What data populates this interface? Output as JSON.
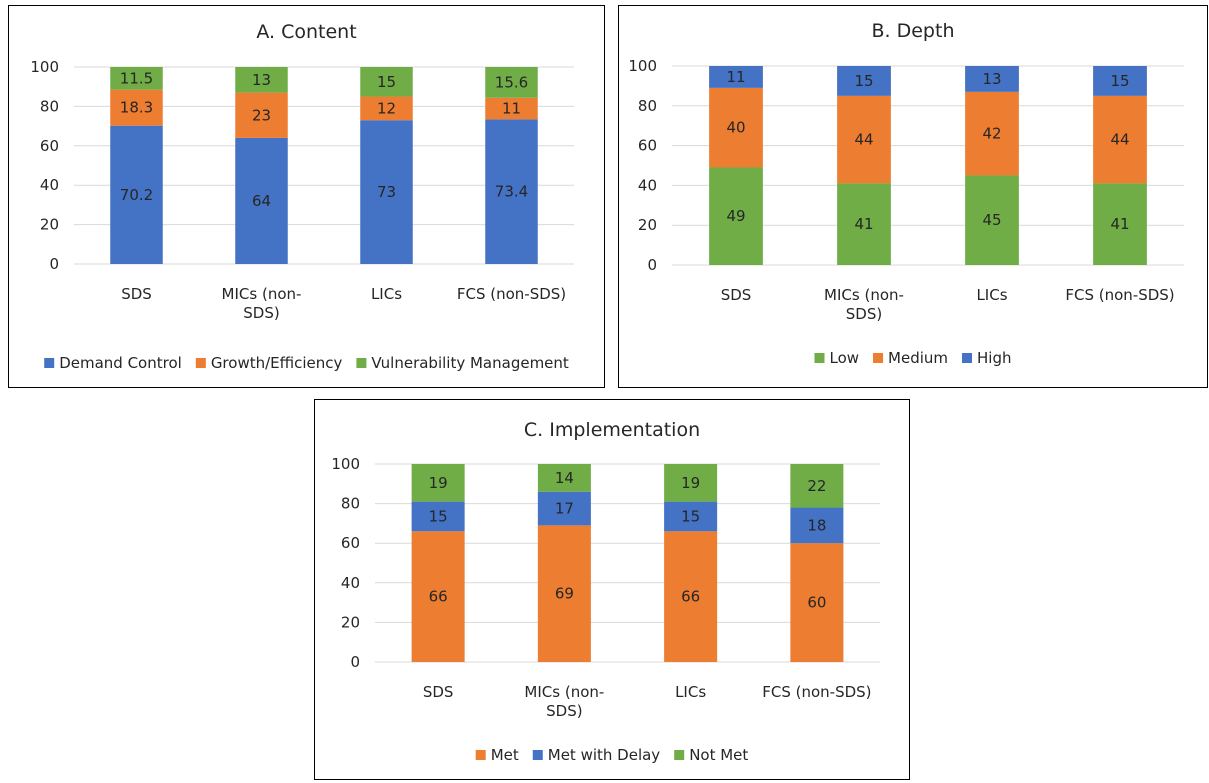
{
  "chart_data": [
    {
      "type": "bar",
      "stacked": true,
      "title": "A. Content",
      "categories": [
        [
          "SDS"
        ],
        [
          "MICs (non-",
          "SDS)"
        ],
        [
          "LICs"
        ],
        [
          "FCS (non-SDS)"
        ]
      ],
      "ylim": [
        0,
        100
      ],
      "yticks": [
        0,
        20,
        40,
        60,
        80,
        100
      ],
      "grid": true,
      "legend": "bottom",
      "series": [
        {
          "name": "Demand Control",
          "color": "#4472c4",
          "values": [
            70.2,
            64,
            73,
            73.4
          ],
          "labels": [
            "70.2",
            "64",
            "73",
            "73.4"
          ]
        },
        {
          "name": "Growth/Efficiency",
          "color": "#ed7d31",
          "values": [
            18.3,
            23,
            12,
            11
          ],
          "labels": [
            "18.3",
            "23",
            "12",
            "11"
          ]
        },
        {
          "name": "Vulnerability Management",
          "color": "#70ad47",
          "values": [
            11.5,
            13,
            15,
            15.6
          ],
          "labels": [
            "11.5",
            "13",
            "15",
            "15.6"
          ]
        }
      ]
    },
    {
      "type": "bar",
      "stacked": true,
      "title": "B. Depth",
      "categories": [
        [
          "SDS"
        ],
        [
          "MICs (non-",
          "SDS)"
        ],
        [
          "LICs"
        ],
        [
          "FCS (non-SDS)"
        ]
      ],
      "ylim": [
        0,
        100
      ],
      "yticks": [
        0,
        20,
        40,
        60,
        80,
        100
      ],
      "grid": true,
      "legend": "bottom",
      "series": [
        {
          "name": "Low",
          "color": "#70ad47",
          "values": [
            49,
            41,
            45,
            41
          ],
          "labels": [
            "49",
            "41",
            "45",
            "41"
          ]
        },
        {
          "name": "Medium",
          "color": "#ed7d31",
          "values": [
            40,
            44,
            42,
            44
          ],
          "labels": [
            "40",
            "44",
            "42",
            "44"
          ]
        },
        {
          "name": "High",
          "color": "#4472c4",
          "values": [
            11,
            15,
            13,
            15
          ],
          "labels": [
            "11",
            "15",
            "13",
            "15"
          ]
        }
      ]
    },
    {
      "type": "bar",
      "stacked": true,
      "title": "C. Implementation",
      "categories": [
        [
          "SDS"
        ],
        [
          "MICs (non-",
          "SDS)"
        ],
        [
          "LICs"
        ],
        [
          "FCS (non-SDS)"
        ]
      ],
      "ylim": [
        0,
        100
      ],
      "yticks": [
        0,
        20,
        40,
        60,
        80,
        100
      ],
      "grid": true,
      "legend": "bottom",
      "series": [
        {
          "name": "Met",
          "color": "#ed7d31",
          "values": [
            66,
            69,
            66,
            60
          ],
          "labels": [
            "66",
            "69",
            "66",
            "60"
          ]
        },
        {
          "name": "Met with Delay",
          "color": "#4472c4",
          "values": [
            15,
            17,
            15,
            18
          ],
          "labels": [
            "15",
            "17",
            "15",
            "18"
          ]
        },
        {
          "name": "Not Met",
          "color": "#70ad47",
          "values": [
            19,
            14,
            19,
            22
          ],
          "labels": [
            "19",
            "14",
            "19",
            "22"
          ]
        }
      ]
    }
  ]
}
